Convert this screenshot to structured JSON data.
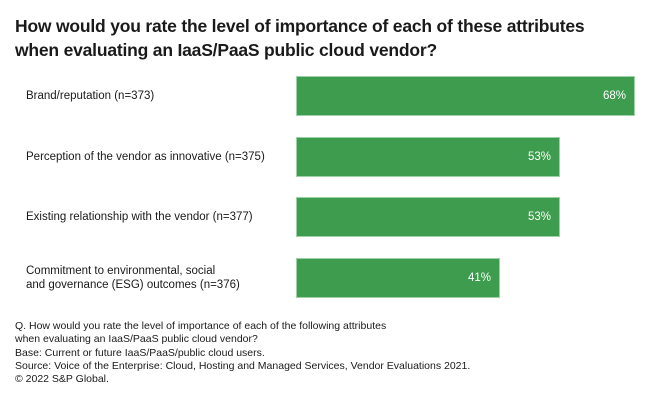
{
  "chart_data": {
    "type": "bar",
    "orientation": "horizontal",
    "title": "How would you rate the level of importance of each of these attributes when evaluating an IaaS/PaaS public cloud vendor?",
    "title_lines": [
      "How would you rate the level of importance of each of these attributes",
      "when evaluating an IaaS/PaaS public cloud vendor?"
    ],
    "categories": [
      "Brand/reputation (n=373)",
      "Perception of the vendor as innovative (n=375)",
      "Existing relationship with the vendor (n=377)",
      "Commitment to environmental, social and governance (ESG) outcomes (n=376)"
    ],
    "category_lines": [
      [
        "Brand/reputation (n=373)"
      ],
      [
        "Perception of the vendor as innovative (n=375)"
      ],
      [
        "Existing relationship with the vendor (n=377)"
      ],
      [
        "Commitment to environmental, social",
        "and governance (ESG) outcomes (n=376)"
      ]
    ],
    "values": [
      68,
      53,
      53,
      41
    ],
    "data_labels": [
      "68%",
      "53%",
      "53%",
      "41%"
    ],
    "unit": "%",
    "xlabel": "",
    "ylabel": "",
    "xlim": [
      0,
      68
    ],
    "grid": false,
    "legend": "none",
    "bar_color": "#3d9c4d"
  },
  "footnotes": [
    "Q. How would you rate the level of importance of each of the following attributes",
    "when evaluating an IaaS/PaaS public cloud vendor?",
    "Base: Current or future IaaS/PaaS/public cloud users.",
    "Source: Voice of the Enterprise: Cloud, Hosting and Managed Services, Vendor Evaluations 2021.",
    "© 2022 S&P Global."
  ]
}
